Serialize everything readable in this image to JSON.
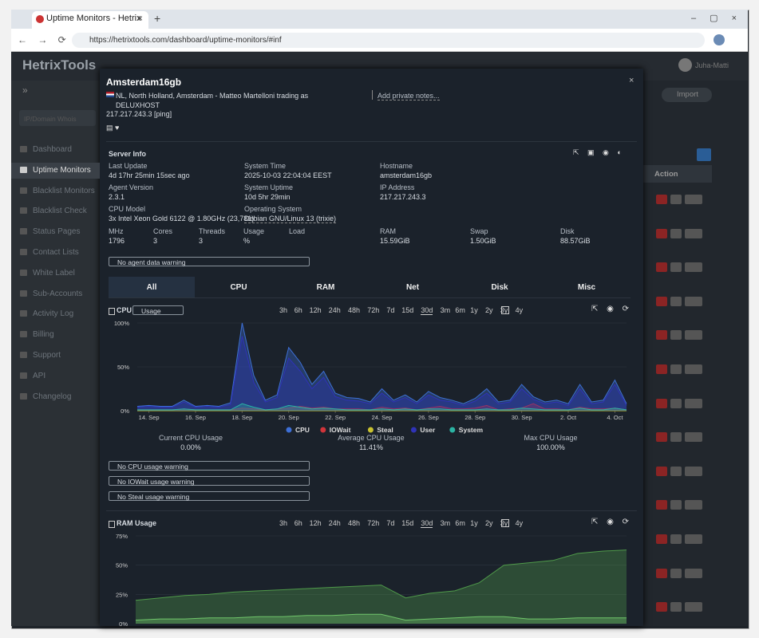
{
  "browser": {
    "tab_title": "Uptime Monitors - Hetrix",
    "url": "https://hetrixtools.com/dashboard/uptime-monitors/#inf"
  },
  "app": {
    "logo": "HetrixTools",
    "user": "Juha-Matti",
    "search_placeholder": "IP/Domain Whois",
    "nav": [
      "Dashboard",
      "Uptime Monitors",
      "Blacklist Monitors",
      "Blacklist Check",
      "Status Pages",
      "Contact Lists",
      "White Label",
      "Sub-Accounts",
      "Activity Log",
      "Billing",
      "Support",
      "API",
      "Changelog"
    ],
    "import_button": "Import",
    "action_header": "Action"
  },
  "modal": {
    "title": "Amsterdam16gb",
    "location": "NL, North Holland, Amsterdam - Matteo Martelloni trading as DELUXHOST",
    "ip": "217.217.243.3 [ping]",
    "notes": "Add private notes...",
    "server_info": {
      "title": "Server Info",
      "fields": [
        {
          "label": "Last Update",
          "value": "4d 17hr 25min 15sec ago"
        },
        {
          "label": "System Time",
          "value": "2025-10-03 22:04:04 EEST"
        },
        {
          "label": "Hostname",
          "value": "amsterdam16gb"
        },
        {
          "label": "Agent Version",
          "value": "2.3.1"
        },
        {
          "label": "System Uptime",
          "value": "10d 5hr 29min"
        },
        {
          "label": "IP Address",
          "value": "217.217.243.3"
        },
        {
          "label": "CPU Model",
          "value": "3x Intel Xeon Gold 6122 @ 1.80GHz (23,781)"
        },
        {
          "label": "Operating System",
          "value": "Debian GNU/Linux 13 (trixie)"
        }
      ],
      "small_fields": [
        {
          "label": "MHz",
          "value": "1796"
        },
        {
          "label": "Cores",
          "value": "3"
        },
        {
          "label": "Threads",
          "value": "3"
        },
        {
          "label": "Usage",
          "value": "%"
        },
        {
          "label": "Load"
        },
        {
          "label": "RAM",
          "value": "15.59GiB"
        },
        {
          "label": "Swap",
          "value": "1.50GiB"
        },
        {
          "label": "Disk",
          "value": "88.57GiB"
        }
      ]
    },
    "agent_warning": "No agent data warning",
    "tabs": [
      "All",
      "CPU",
      "RAM",
      "Net",
      "Disk",
      "Misc"
    ],
    "ranges": [
      "3h",
      "6h",
      "12h",
      "24h",
      "48h",
      "72h",
      "7d",
      "15d",
      "30d",
      "3m",
      "6m",
      "1y",
      "2y",
      "3y",
      "4y"
    ],
    "cpu_title": "CPU",
    "cpu_select": "Usage",
    "cpu_stats": [
      {
        "label": "Current CPU Usage",
        "value": "0.00%"
      },
      {
        "label": "Average CPU Usage",
        "value": "11.41%"
      },
      {
        "label": "Max CPU Usage",
        "value": "100.00%"
      }
    ],
    "cpu_warnings": [
      "No CPU usage warning",
      "No IOWait usage warning",
      "No Steal usage warning"
    ],
    "ram_title": "RAM Usage"
  },
  "cpu_chart": {
    "type": "area",
    "xlim": [
      0,
      42
    ],
    "ylim": [
      0,
      100
    ],
    "yticks": [
      {
        "value": 0,
        "label": "0%"
      },
      {
        "value": 50,
        "label": "50%"
      },
      {
        "value": 100,
        "label": "100%"
      }
    ],
    "xticks": [
      {
        "value": 1,
        "label": "14. Sep"
      },
      {
        "value": 5,
        "label": "16. Sep"
      },
      {
        "value": 9,
        "label": "18. Sep"
      },
      {
        "value": 13,
        "label": "20. Sep"
      },
      {
        "value": 17,
        "label": "22. Sep"
      },
      {
        "value": 21,
        "label": "24. Sep"
      },
      {
        "value": 25,
        "label": "26. Sep"
      },
      {
        "value": 29,
        "label": "28. Sep"
      },
      {
        "value": 33,
        "label": "30. Sep"
      },
      {
        "value": 37,
        "label": "2. Oct"
      },
      {
        "value": 41,
        "label": "4. Oct"
      }
    ],
    "series": [
      {
        "name": "CPU",
        "color": "#3d6fd6",
        "values": [
          5,
          6,
          5,
          5,
          12,
          5,
          6,
          5,
          9,
          100,
          40,
          12,
          18,
          72,
          55,
          30,
          45,
          20,
          15,
          14,
          10,
          25,
          12,
          18,
          10,
          22,
          15,
          12,
          8,
          14,
          25,
          10,
          12,
          30,
          16,
          10,
          12,
          8,
          30,
          10,
          12,
          35,
          8
        ]
      },
      {
        "name": "IOWait",
        "color": "#d0343a",
        "values": [
          1,
          1,
          1,
          1,
          2,
          1,
          1,
          1,
          1,
          3,
          2,
          1,
          2,
          3,
          5,
          3,
          4,
          2,
          2,
          2,
          1,
          4,
          2,
          3,
          1,
          3,
          5,
          2,
          2,
          3,
          6,
          1,
          2,
          3,
          8,
          2,
          2,
          1,
          4,
          2,
          2,
          3,
          1
        ]
      },
      {
        "name": "Steal",
        "color": "#c9c230",
        "values": [
          0,
          0,
          0,
          0,
          0,
          0,
          0,
          0,
          0,
          0,
          0,
          0,
          0,
          0,
          0,
          0,
          0,
          0,
          0,
          0,
          0,
          0,
          0,
          0,
          0,
          0,
          0,
          0,
          0,
          0,
          0,
          0,
          0,
          0,
          0,
          0,
          0,
          0,
          0,
          0,
          0,
          0,
          0
        ]
      },
      {
        "name": "User",
        "color": "#2f33b8",
        "values": [
          4,
          5,
          4,
          4,
          10,
          4,
          5,
          4,
          7,
          85,
          32,
          10,
          15,
          60,
          45,
          25,
          38,
          16,
          12,
          11,
          8,
          20,
          10,
          15,
          8,
          18,
          12,
          10,
          6,
          11,
          20,
          8,
          10,
          25,
          13,
          8,
          10,
          6,
          25,
          8,
          10,
          30,
          6
        ]
      },
      {
        "name": "System",
        "color": "#2bb3a3",
        "values": [
          1,
          1,
          1,
          1,
          2,
          1,
          1,
          1,
          1,
          8,
          4,
          1,
          2,
          6,
          4,
          2,
          3,
          2,
          1,
          1,
          1,
          2,
          1,
          2,
          1,
          2,
          2,
          1,
          1,
          1,
          2,
          1,
          1,
          3,
          2,
          1,
          1,
          1,
          3,
          1,
          1,
          3,
          1
        ]
      }
    ]
  },
  "ram_chart": {
    "type": "area",
    "xlim": [
      0,
      20
    ],
    "ylim": [
      0,
      75
    ],
    "yticks": [
      {
        "value": 0,
        "label": "0%"
      },
      {
        "value": 25,
        "label": "25%"
      },
      {
        "value": 50,
        "label": "50%"
      },
      {
        "value": 75,
        "label": "75%"
      }
    ],
    "series": [
      {
        "color": "#4f9a4a",
        "values": [
          20,
          22,
          24,
          25,
          27,
          28,
          29,
          30,
          31,
          32,
          33,
          22,
          26,
          28,
          35,
          50,
          52,
          54,
          60,
          62,
          63
        ]
      },
      {
        "color": "#6fc46a",
        "values": [
          3,
          4,
          4,
          5,
          5,
          6,
          6,
          7,
          7,
          8,
          8,
          3,
          4,
          5,
          6,
          6,
          4,
          4,
          5,
          5,
          5
        ]
      }
    ]
  }
}
